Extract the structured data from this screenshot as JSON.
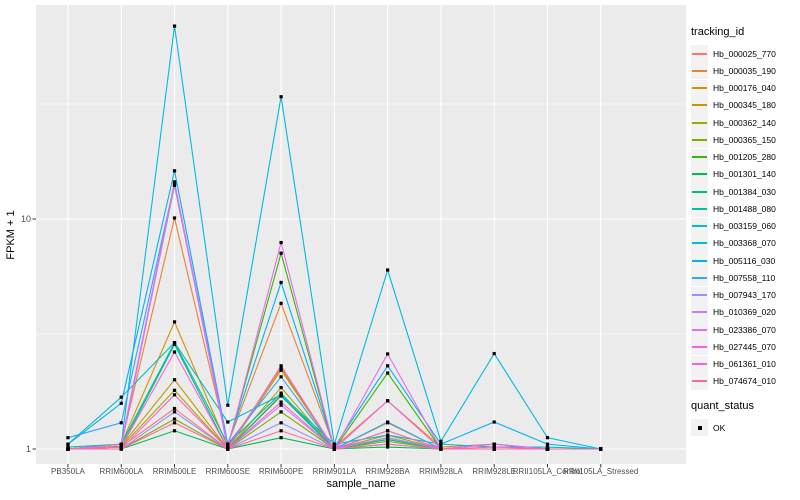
{
  "figure": {
    "xlabel": "sample_name",
    "ylabel": "FPKM + 1",
    "colors": {
      "panel_bg": "#EBEBEB",
      "grid": "#FFFFFF",
      "tick": "#333333",
      "axis_text": "#4D4D4D",
      "point": "#000000",
      "legend_key_bg": "#F2F2F2"
    }
  },
  "chart_data": {
    "type": "line",
    "title": "",
    "xlabel": "sample_name",
    "ylabel": "FPKM + 1",
    "yscale": "log10",
    "ylim": [
      1,
      85
    ],
    "y_major_ticks": [
      1,
      10
    ],
    "y_tick_labels": [
      "1",
      "10"
    ],
    "y_minor_ticks": [
      3.1623,
      31.623
    ],
    "grid": true,
    "legend_position": "right",
    "x_categories": [
      "PB350LA",
      "RRIM600LA",
      "RRIM600LE",
      "RRIM600SE",
      "RRIM600PE",
      "RRIM901LA",
      "RRIM928BA",
      "RRIM928LA",
      "RRIM928LE",
      "RRII105LA_Control",
      "RRII105LA_Stressed"
    ],
    "legend_tracking": {
      "title": "tracking_id"
    },
    "legend_quant": {
      "title": "quant_status",
      "items": [
        {
          "label": "OK",
          "marker": "black-square"
        }
      ]
    },
    "series": [
      {
        "name": "Hb_000025_770",
        "color": "#F8766D",
        "values": [
          1.0,
          1.02,
          1.5,
          1.0,
          1.72,
          1.0,
          1.1,
          1.0,
          1.0,
          1.0,
          1.0
        ]
      },
      {
        "name": "Hb_000035_190",
        "color": "#EA8331",
        "values": [
          1.0,
          1.05,
          10.1,
          1.05,
          4.3,
          1.02,
          1.62,
          1.02,
          1.05,
          1.0,
          1.0
        ]
      },
      {
        "name": "Hb_000176_040",
        "color": "#D89000",
        "values": [
          1.0,
          1.05,
          3.57,
          1.02,
          2.25,
          1.0,
          1.2,
          1.0,
          1.0,
          1.0,
          1.0
        ]
      },
      {
        "name": "Hb_000345_180",
        "color": "#C09B00",
        "values": [
          1.0,
          1.03,
          2.0,
          1.0,
          2.2,
          1.0,
          1.3,
          1.0,
          1.0,
          1.0,
          1.0
        ]
      },
      {
        "name": "Hb_000362_140",
        "color": "#A3A500",
        "values": [
          1.0,
          1.02,
          1.8,
          1.0,
          1.85,
          1.0,
          1.15,
          1.0,
          1.0,
          1.0,
          1.0
        ]
      },
      {
        "name": "Hb_000365_150",
        "color": "#7CAE00",
        "values": [
          1.0,
          1.0,
          1.35,
          1.0,
          1.45,
          1.0,
          1.08,
          1.0,
          1.0,
          1.0,
          1.0
        ]
      },
      {
        "name": "Hb_001205_280",
        "color": "#39B600",
        "values": [
          1.0,
          1.05,
          14.0,
          1.03,
          7.1,
          1.0,
          2.14,
          1.0,
          1.05,
          1.0,
          1.0
        ]
      },
      {
        "name": "Hb_001301_140",
        "color": "#00BB4E",
        "values": [
          1.0,
          1.0,
          1.2,
          1.0,
          1.12,
          1.0,
          1.02,
          1.0,
          1.0,
          1.0,
          1.0
        ]
      },
      {
        "name": "Hb_001384_030",
        "color": "#00BF7D",
        "values": [
          1.0,
          1.02,
          2.85,
          1.0,
          1.7,
          1.0,
          1.12,
          1.0,
          1.0,
          1.0,
          1.0
        ]
      },
      {
        "name": "Hb_001488_080",
        "color": "#00C1A3",
        "values": [
          1.02,
          1.05,
          2.9,
          1.05,
          1.75,
          1.0,
          1.1,
          1.0,
          1.0,
          1.0,
          1.0
        ]
      },
      {
        "name": "Hb_003159_060",
        "color": "#00BFC4",
        "values": [
          1.05,
          1.68,
          2.9,
          1.31,
          1.72,
          1.05,
          1.15,
          1.05,
          1.02,
          1.02,
          1.0
        ]
      },
      {
        "name": "Hb_003368_070",
        "color": "#00BAE0",
        "values": [
          1.0,
          1.05,
          69.0,
          1.55,
          34.0,
          1.05,
          6.0,
          1.08,
          2.6,
          1.12,
          1.0
        ]
      },
      {
        "name": "Hb_005116_030",
        "color": "#00B0F6",
        "values": [
          1.05,
          1.58,
          16.2,
          1.05,
          5.3,
          1.02,
          2.3,
          1.05,
          1.31,
          1.05,
          1.0
        ]
      },
      {
        "name": "Hb_007558_110",
        "color": "#35A2FF",
        "values": [
          1.12,
          1.3,
          14.3,
          1.05,
          2.06,
          1.0,
          1.31,
          1.0,
          1.05,
          1.0,
          1.0
        ]
      },
      {
        "name": "Hb_007943_170",
        "color": "#9590FF",
        "values": [
          1.0,
          1.0,
          1.45,
          1.0,
          1.3,
          1.0,
          1.05,
          1.0,
          1.0,
          1.0,
          1.0
        ]
      },
      {
        "name": "Hb_010369_020",
        "color": "#C77CFF",
        "values": [
          1.0,
          1.02,
          14.2,
          1.0,
          1.55,
          1.0,
          1.12,
          1.0,
          1.0,
          1.0,
          1.0
        ]
      },
      {
        "name": "Hb_023386_070",
        "color": "#E76BF3",
        "values": [
          1.0,
          1.05,
          14.5,
          1.02,
          7.9,
          1.0,
          2.59,
          1.0,
          1.05,
          1.0,
          1.0
        ]
      },
      {
        "name": "Hb_027445_070",
        "color": "#FA62DB",
        "values": [
          1.0,
          1.02,
          2.64,
          1.0,
          2.3,
          1.0,
          1.62,
          1.0,
          1.0,
          1.0,
          1.0
        ]
      },
      {
        "name": "Hb_061361_010",
        "color": "#FF61CC",
        "values": [
          1.0,
          1.0,
          1.72,
          1.0,
          1.6,
          1.0,
          1.2,
          1.0,
          1.02,
          1.0,
          1.0
        ]
      },
      {
        "name": "Hb_074674_010",
        "color": "#FF6A98",
        "values": [
          1.0,
          1.0,
          1.3,
          1.0,
          1.2,
          1.0,
          1.05,
          1.0,
          1.0,
          1.0,
          1.0
        ]
      }
    ]
  }
}
